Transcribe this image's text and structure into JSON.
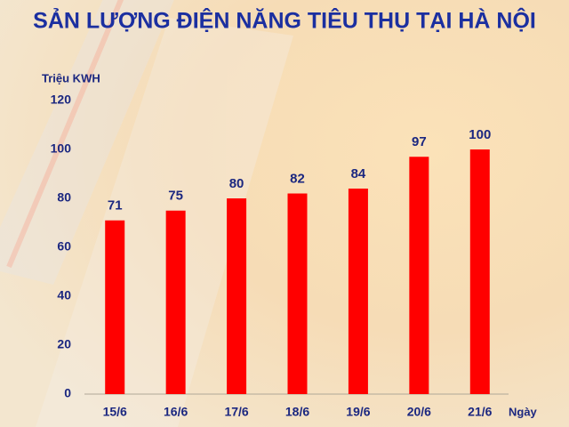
{
  "chart_data": {
    "type": "bar",
    "title": "SẢN LƯỢNG ĐIỆN NĂNG TIÊU THỤ TẠI HÀ NỘI",
    "y_label": "Triệu KWH",
    "x_label": "Ngày",
    "categories": [
      "15/6",
      "16/6",
      "17/6",
      "18/6",
      "19/6",
      "20/6",
      "21/6"
    ],
    "values": [
      71,
      75,
      80,
      82,
      84,
      97,
      100
    ],
    "color": "#ff0000",
    "label_color": "#1b2780",
    "ylim": [
      0,
      120
    ],
    "yticks": [
      0,
      20,
      40,
      60,
      80,
      100,
      120
    ],
    "grid": false
  }
}
